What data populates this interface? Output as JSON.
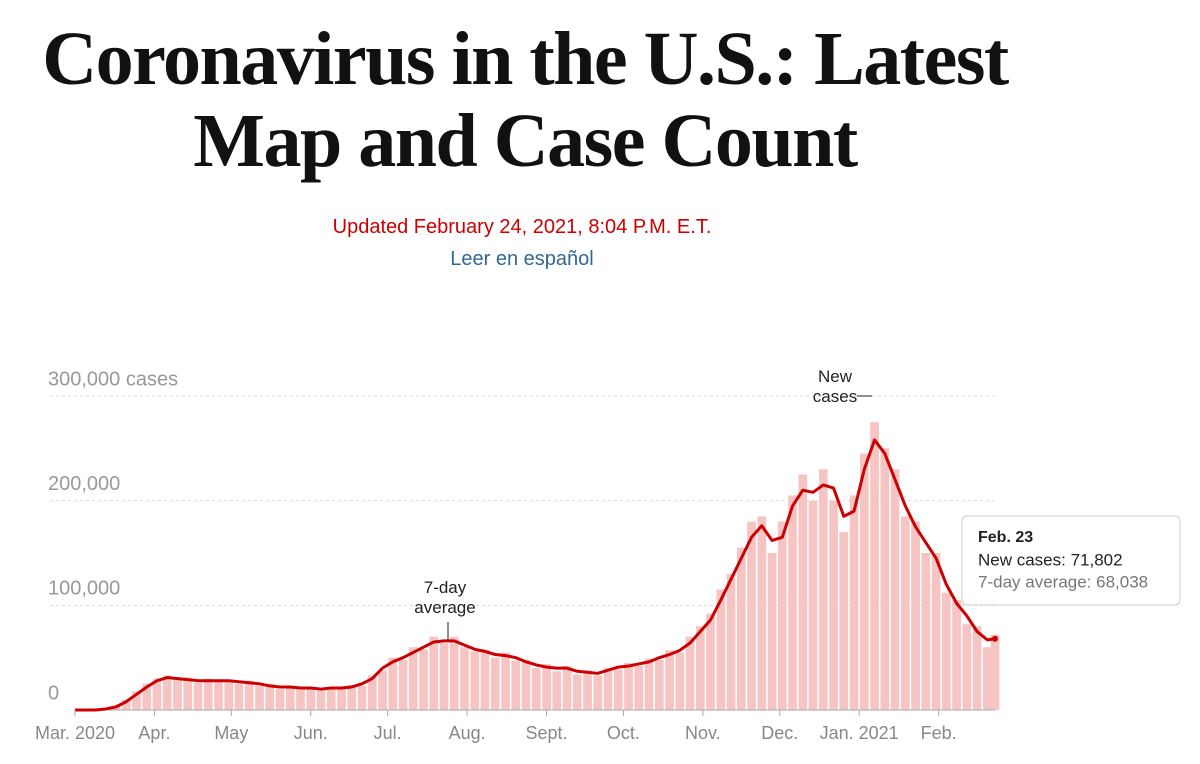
{
  "header": {
    "title": "Coronavirus in the U.S.: Latest Map and Case Count",
    "updated": "Updated February 24, 2021, 8:04 P.M. E.T.",
    "language_link": "Leer en español"
  },
  "chart_data": {
    "type": "bar",
    "x": [
      0,
      4,
      8,
      12,
      16,
      20,
      24,
      28,
      32,
      36,
      40,
      44,
      48,
      52,
      56,
      60,
      64,
      68,
      72,
      76,
      80,
      84,
      88,
      92,
      96,
      100,
      104,
      108,
      112,
      116,
      120,
      124,
      128,
      132,
      136,
      140,
      144,
      148,
      152,
      156,
      160,
      164,
      168,
      172,
      176,
      180,
      184,
      188,
      192,
      196,
      200,
      204,
      208,
      212,
      216,
      220,
      224,
      228,
      232,
      236,
      240,
      244,
      248,
      252,
      256,
      260,
      264,
      268,
      272,
      276,
      280,
      284,
      288,
      292,
      296,
      300,
      304,
      308,
      312,
      316,
      320,
      324,
      328,
      332,
      336,
      340,
      344,
      348,
      352,
      356,
      359
    ],
    "series": [
      {
        "name": "New cases",
        "type": "bar",
        "color": "#f7c4c4",
        "values": [
          0,
          0,
          200,
          1500,
          4000,
          10000,
          18000,
          25000,
          30000,
          33000,
          29000,
          31000,
          26000,
          30000,
          27000,
          29000,
          25000,
          28000,
          23000,
          25000,
          20000,
          23000,
          20000,
          22000,
          19000,
          22000,
          20000,
          24000,
          23000,
          33000,
          38000,
          50000,
          48000,
          60000,
          58000,
          70000,
          64000,
          70000,
          60000,
          56000,
          58000,
          50000,
          55000,
          47000,
          48000,
          40000,
          44000,
          37000,
          42000,
          34000,
          38000,
          33000,
          40000,
          39000,
          45000,
          42000,
          49000,
          48000,
          57000,
          55000,
          70000,
          80000,
          92000,
          115000,
          130000,
          155000,
          180000,
          185000,
          150000,
          180000,
          205000,
          225000,
          200000,
          230000,
          200000,
          170000,
          205000,
          245000,
          275000,
          250000,
          230000,
          185000,
          180000,
          150000,
          150000,
          112000,
          105000,
          82000,
          80000,
          60000,
          71802
        ]
      },
      {
        "name": "7-day average",
        "type": "line",
        "color": "#cc0000",
        "values": [
          0,
          0,
          0,
          1000,
          3000,
          8000,
          15000,
          22000,
          28000,
          31000,
          30000,
          29000,
          28000,
          28000,
          28000,
          28000,
          27000,
          26000,
          25000,
          23000,
          22000,
          22000,
          21000,
          21000,
          20000,
          21000,
          21000,
          22000,
          25000,
          30000,
          40000,
          46000,
          50000,
          55000,
          60000,
          65000,
          66000,
          66000,
          62000,
          58000,
          56000,
          53000,
          52000,
          50000,
          46000,
          43000,
          41000,
          40000,
          40000,
          37000,
          36000,
          35000,
          38000,
          41000,
          42000,
          44000,
          46000,
          50000,
          53000,
          57000,
          64000,
          75000,
          86000,
          105000,
          125000,
          145000,
          165000,
          176000,
          162000,
          165000,
          195000,
          210000,
          208000,
          215000,
          212000,
          185000,
          190000,
          230000,
          258000,
          245000,
          220000,
          195000,
          175000,
          160000,
          145000,
          120000,
          102000,
          90000,
          75000,
          67000,
          68038
        ]
      }
    ],
    "xlim": [
      0,
      359
    ],
    "xticks": [
      {
        "value": 0,
        "label": "Mar. 2020"
      },
      {
        "value": 31,
        "label": "Apr."
      },
      {
        "value": 61,
        "label": "May"
      },
      {
        "value": 92,
        "label": "Jun."
      },
      {
        "value": 122,
        "label": "Jul."
      },
      {
        "value": 153,
        "label": "Aug."
      },
      {
        "value": 184,
        "label": "Sept."
      },
      {
        "value": 214,
        "label": "Oct."
      },
      {
        "value": 245,
        "label": "Nov."
      },
      {
        "value": 275,
        "label": "Dec."
      },
      {
        "value": 306,
        "label": "Jan. 2021"
      },
      {
        "value": 337,
        "label": "Feb."
      }
    ],
    "ylim": [
      0,
      300000
    ],
    "yticks": [
      0,
      {
        "value": 100000,
        "label": "100,000"
      },
      {
        "value": 200000,
        "label": "200,000"
      },
      {
        "value": 300000,
        "label": "300,000 cases"
      }
    ],
    "grid": true,
    "tooltip": {
      "title": "Feb. 23",
      "lines": [
        "New cases: 71,802",
        "7-day average: 68,038"
      ]
    }
  }
}
